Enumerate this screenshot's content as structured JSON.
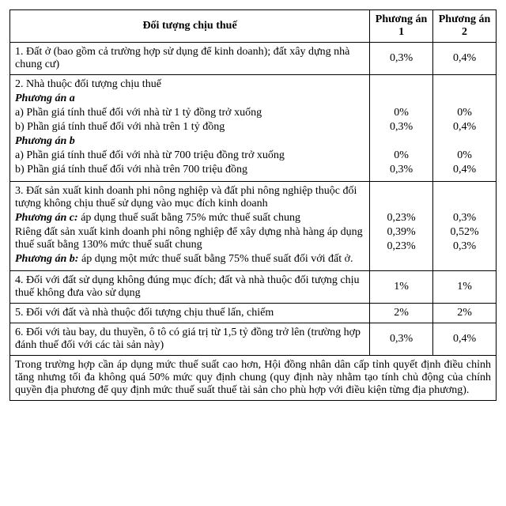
{
  "header": {
    "main": "Đối tượng chịu thuế",
    "col1": "Phương án  1",
    "col2": "Phương án 2"
  },
  "rows": [
    {
      "main_html": "1. Đất ở (bao gồm cả trường hợp sử dụng để kinh doanh); đất xây dựng nhà chung cư)",
      "v1": "0,3%",
      "v2": "0,4%"
    },
    {
      "lines": [
        {
          "text": "2. Nhà thuộc đối tượng chịu thuế"
        },
        {
          "text": "Phương án a",
          "class": "bi"
        },
        {
          "text": "a) Phần giá tính thuế đối với nhà từ 1 tỷ đồng trở xuống",
          "v1": "0%",
          "v2": "0%"
        },
        {
          "text": "b) Phần giá tính thuế đối với nhà trên 1 tỷ đồng",
          "v1": "0,3%",
          "v2": "0,4%"
        },
        {
          "text": "Phương án b",
          "class": "bi"
        },
        {
          "text": "a) Phần giá tính thuế đối với nhà từ 700 triệu đồng trở xuống",
          "v1": "0%",
          "v2": "0%"
        },
        {
          "text": "b) Phần giá tính thuế đối với nhà trên 700 triệu đồng",
          "v1": "0,3%",
          "v2": "0,4%"
        }
      ]
    },
    {
      "lines": [
        {
          "text": "3. Đất sản xuất kinh doanh phi nông nghiệp và đất phi nông nghiệp thuộc đối tượng không chịu thuế sử dụng vào mục đích kinh doanh"
        },
        {
          "html": "<span class='bi'>Phương án c:</span> áp dụng thuế suất bằng 75% mức thuế suất chung",
          "v1": "0,23%",
          "v2": "0,3%"
        },
        {
          "text": "Riêng đất sản xuất kinh doanh phi nông nghiệp để xây dựng nhà hàng áp dụng thuế suất bằng 130% mức thuế suất chung",
          "v1": "0,39%",
          "v2": "0,52%"
        },
        {
          "html": "<span class='bi'>Phương án b:</span> áp dụng một mức thuế suất bằng 75% thuế suất đối với đất ở.",
          "v1": "0,23%",
          "v2": "0,3%"
        }
      ]
    },
    {
      "main_html": "4. Đối với đất sử dụng không đúng mục đích; đất và nhà thuộc đối tượng chịu thuế không đưa vào sử dụng",
      "v1": "1%",
      "v2": "1%"
    },
    {
      "main_html": "5. Đối với đất và nhà thuộc đối tượng chịu thuế lấn, chiếm",
      "v1": "2%",
      "v2": "2%"
    },
    {
      "main_html": "6. Đối với tàu bay, du thuyền, ô tô có giá trị từ 1,5 tỷ đồng trở lên (trường hợp đánh thuế đối với các tài sản này)",
      "v1": "0,3%",
      "v2": "0,4%"
    }
  ],
  "footnote": "Trong trường hợp cần áp dụng mức thuế suất cao hơn, Hội đồng nhân dân cấp tỉnh quyết định điều chỉnh tăng nhưng tối đa không quá 50% mức quy định chung (quy định này nhằm tạo tính chủ động của chính quyền địa phương để quy định mức thuế suất thuế tài sản cho phù hợp với điều kiện từng địa phương)."
}
